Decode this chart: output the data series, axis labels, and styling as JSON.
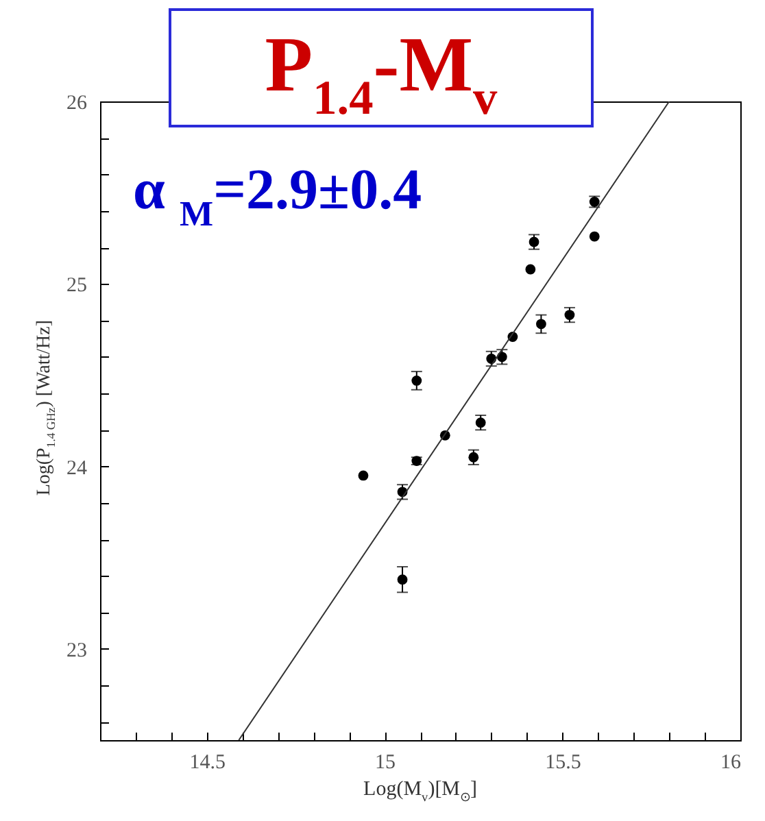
{
  "chart_data": {
    "type": "scatter",
    "title": "P$_{1.4}$-M$_{v}$",
    "annotations": [
      "α $_{M}$=2.9±0.4"
    ],
    "xlabel": "Log(M$_{v}$)[M$_{⊙}$]",
    "ylabel": "Log(P$_{1.4 GHz}$) [Watt/Hz]",
    "xlim": [
      14.2,
      16
    ],
    "ylim": [
      22.5,
      26
    ],
    "xticks": [
      {
        "value": 14.3,
        "label": null
      },
      {
        "value": 14.4,
        "label": null
      },
      14.5,
      {
        "value": 14.6,
        "label": null
      },
      {
        "value": 14.7,
        "label": null
      },
      {
        "value": 14.8,
        "label": null
      },
      {
        "value": 14.9,
        "label": null
      },
      15,
      {
        "value": 15.1,
        "label": null
      },
      {
        "value": 15.2,
        "label": null
      },
      {
        "value": 15.3,
        "label": null
      },
      {
        "value": 15.4,
        "label": null
      },
      15.5,
      {
        "value": 15.6,
        "label": null
      },
      {
        "value": 15.7,
        "label": null
      },
      {
        "value": 15.8,
        "label": null
      },
      {
        "value": 15.9,
        "label": null
      },
      16
    ],
    "yticks": [
      {
        "value": 22.6,
        "label": null
      },
      {
        "value": 22.8,
        "label": null
      },
      23,
      {
        "value": 23.2,
        "label": null
      },
      {
        "value": 23.4,
        "label": null
      },
      {
        "value": 23.6,
        "label": null
      },
      {
        "value": 23.8,
        "label": null
      },
      24,
      {
        "value": 24.2,
        "label": null
      },
      {
        "value": 24.4,
        "label": null
      },
      {
        "value": 24.6,
        "label": null
      },
      {
        "value": 24.8,
        "label": null
      },
      25,
      {
        "value": 25.2,
        "label": null
      },
      {
        "value": 25.4,
        "label": null
      },
      {
        "value": 25.6,
        "label": null
      },
      {
        "value": 25.8,
        "label": null
      },
      26
    ],
    "grid": false,
    "series": [
      {
        "marker": "circle",
        "color": "#000000",
        "x": [
          14.94,
          15.05,
          15.05,
          15.09,
          15.09,
          15.17,
          15.25,
          15.27,
          15.3,
          15.33,
          15.36,
          15.41,
          15.42,
          15.44,
          15.52,
          15.59,
          15.59
        ],
        "values": [
          23.95,
          23.86,
          23.38,
          24.03,
          24.47,
          24.17,
          24.05,
          24.24,
          24.59,
          24.6,
          24.71,
          25.08,
          25.23,
          24.78,
          24.83,
          25.45,
          25.26
        ],
        "errors": [
          null,
          0.04,
          0.07,
          0.02,
          0.05,
          null,
          0.04,
          0.04,
          0.04,
          0.04,
          null,
          null,
          0.04,
          0.05,
          0.04,
          0.03,
          null
        ]
      },
      {
        "type": "line",
        "line_style": "solid",
        "color": "#333333",
        "x": [
          14.59,
          15.8
        ],
        "values": [
          22.5,
          26
        ]
      }
    ]
  }
}
